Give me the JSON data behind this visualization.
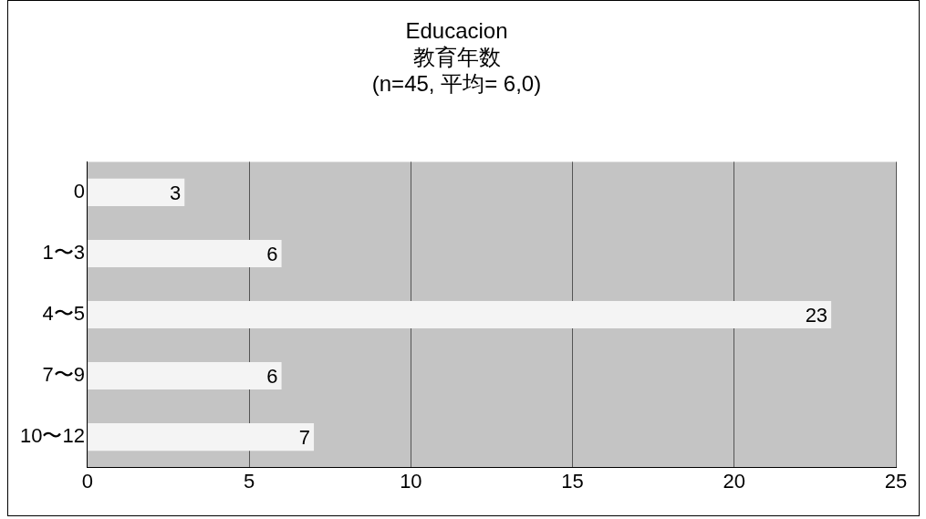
{
  "chart_data": {
    "type": "bar",
    "orientation": "horizontal",
    "title": "Educacion\n教育年数\n(n=45, 平均= 6,0)",
    "categories": [
      "0",
      "1〜3",
      "4〜5",
      "7〜9",
      "10〜12"
    ],
    "values": [
      3,
      6,
      23,
      6,
      7
    ],
    "color": "#f4f4f4",
    "xlim": [
      0,
      25
    ],
    "xticks": [
      0,
      5,
      10,
      15,
      20,
      25
    ],
    "grid": "x",
    "data_labels": true,
    "legend": false
  }
}
